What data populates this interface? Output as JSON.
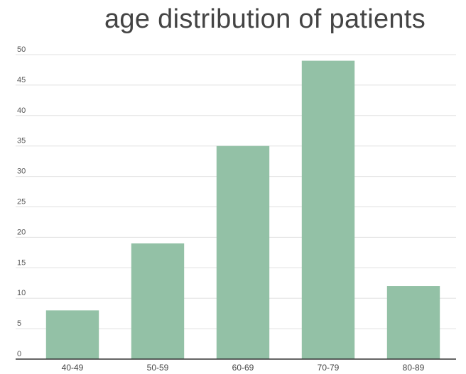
{
  "chart_data": {
    "type": "bar",
    "title": "age distribution of patients",
    "categories": [
      "40-49",
      "50-59",
      "60-69",
      "70-79",
      "80-89"
    ],
    "values": [
      8,
      19,
      35,
      49,
      12
    ],
    "xlabel": "",
    "ylabel": "",
    "ylim": [
      0,
      50
    ],
    "yticks": [
      0,
      5,
      10,
      15,
      20,
      25,
      30,
      35,
      40,
      45,
      50
    ],
    "grid": true,
    "legend": "none",
    "bar_color": "#93c1a6",
    "grid_color": "#e0e0e0",
    "axis_color": "#333333"
  }
}
